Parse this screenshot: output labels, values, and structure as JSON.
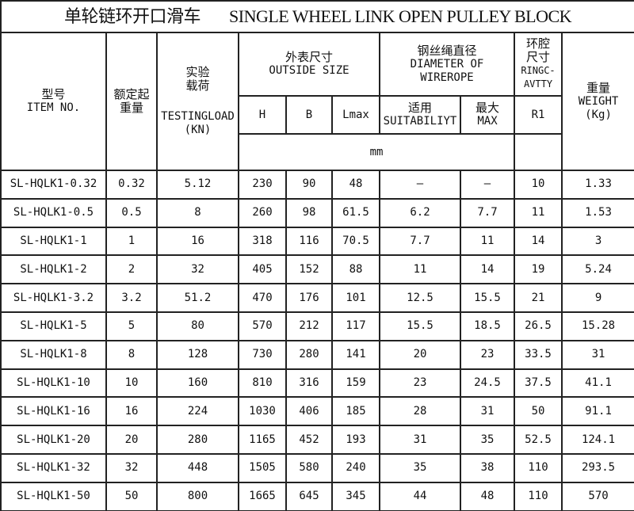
{
  "title": {
    "cn": "单轮链环开口滑车",
    "en": "SINGLE WHEEL LINK OPEN PULLEY BLOCK"
  },
  "headers": {
    "item_cn": "型号",
    "item_en": "ITEM NO.",
    "rated_cn": "额定起重量",
    "test_cn": "实验载荷",
    "test_en": "TESTINGLOAD(KN)",
    "outside_cn": "外表尺寸",
    "outside_en": "OUTSIDE SIZE",
    "wire_cn": "钢丝绳直径",
    "wire_en": "DIAMETER OF WIREROPE",
    "ring_cn": "环腔尺寸",
    "ring_en": "RINGC-AVTTY",
    "weight_cn": "重量",
    "weight_en": "WEIGHT (Kg)",
    "h": "H",
    "b": "B",
    "lmax": "Lmax",
    "suit_cn": "适用",
    "suit_en": "SUITABILIYT",
    "max_cn": "最大",
    "max_en": "MAX",
    "r1": "R1",
    "unit": "mm"
  },
  "rows": [
    [
      "SL-HQLK1-0.32",
      "0.32",
      "5.12",
      "230",
      "90",
      "48",
      "—",
      "—",
      "10",
      "1.33"
    ],
    [
      "SL-HQLK1-0.5",
      "0.5",
      "8",
      "260",
      "98",
      "61.5",
      "6.2",
      "7.7",
      "11",
      "1.53"
    ],
    [
      "SL-HQLK1-1",
      "1",
      "16",
      "318",
      "116",
      "70.5",
      "7.7",
      "11",
      "14",
      "3"
    ],
    [
      "SL-HQLK1-2",
      "2",
      "32",
      "405",
      "152",
      "88",
      "11",
      "14",
      "19",
      "5.24"
    ],
    [
      "SL-HQLK1-3.2",
      "3.2",
      "51.2",
      "470",
      "176",
      "101",
      "12.5",
      "15.5",
      "21",
      "9"
    ],
    [
      "SL-HQLK1-5",
      "5",
      "80",
      "570",
      "212",
      "117",
      "15.5",
      "18.5",
      "26.5",
      "15.28"
    ],
    [
      "SL-HQLK1-8",
      "8",
      "128",
      "730",
      "280",
      "141",
      "20",
      "23",
      "33.5",
      "31"
    ],
    [
      "SL-HQLK1-10",
      "10",
      "160",
      "810",
      "316",
      "159",
      "23",
      "24.5",
      "37.5",
      "41.1"
    ],
    [
      "SL-HQLK1-16",
      "16",
      "224",
      "1030",
      "406",
      "185",
      "28",
      "31",
      "50",
      "91.1"
    ],
    [
      "SL-HQLK1-20",
      "20",
      "280",
      "1165",
      "452",
      "193",
      "31",
      "35",
      "52.5",
      "124.1"
    ],
    [
      "SL-HQLK1-32",
      "32",
      "448",
      "1505",
      "580",
      "240",
      "35",
      "38",
      "110",
      "293.5"
    ],
    [
      "SL-HQLK1-50",
      "50",
      "800",
      "1665",
      "645",
      "345",
      "44",
      "48",
      "110",
      "570"
    ]
  ]
}
